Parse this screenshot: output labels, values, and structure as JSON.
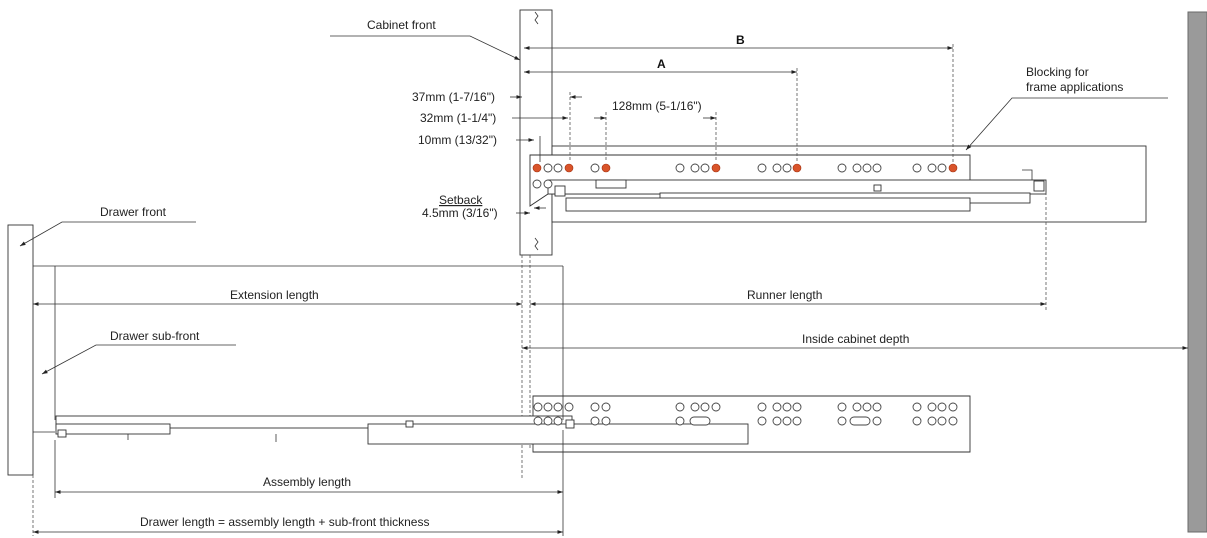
{
  "labels": {
    "cabinet_front": "Cabinet front",
    "blocking_line1": "Blocking for",
    "blocking_line2": "frame applications",
    "dim_b": "B",
    "dim_a": "A",
    "dim_37": "37mm (1-7/16\")",
    "dim_32": "32mm (1-1/4\")",
    "dim_128": "128mm (5-1/16\")",
    "dim_10": "10mm (13/32\")",
    "setback_title": "Setback",
    "setback_value": "4.5mm (3/16\")",
    "drawer_front": "Drawer front",
    "extension_length": "Extension length",
    "runner_length": "Runner length",
    "drawer_sub_front": "Drawer sub-front",
    "inside_cabinet_depth": "Inside cabinet depth",
    "assembly_length": "Assembly length",
    "drawer_length": "Drawer length = assembly length + sub-front thickness"
  },
  "colors": {
    "line": "#333333",
    "accent_hole": "#d9542a",
    "cabinet_back": "#9a9a9a"
  }
}
